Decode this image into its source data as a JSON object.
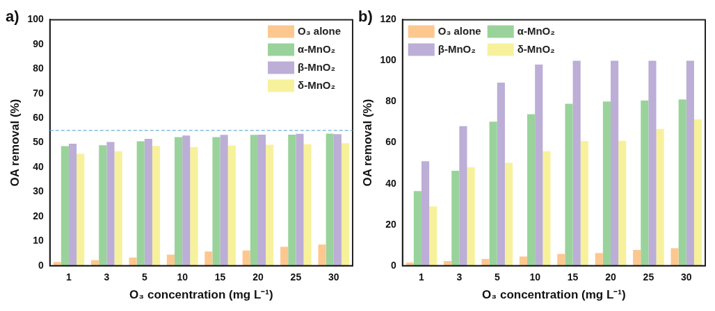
{
  "chart_data": [
    {
      "type": "bar",
      "title": "a)",
      "xlabel": "O₃ concentration (mg L⁻¹)",
      "ylabel": "OA removal (%)",
      "categories": [
        "1",
        "3",
        "5",
        "10",
        "15",
        "20",
        "25",
        "30"
      ],
      "series": [
        {
          "name": "O₃ alone",
          "color": "#fcc890",
          "values": [
            1.5,
            2.3,
            3.3,
            4.5,
            5.8,
            6.2,
            7.7,
            8.6
          ]
        },
        {
          "name": "α-MnO₂",
          "color": "#99d39b",
          "values": [
            48.6,
            49,
            50.6,
            52.3,
            52.3,
            53.2,
            53.3,
            53.7
          ]
        },
        {
          "name": "β-MnO₂",
          "color": "#bcaed6",
          "values": [
            49.6,
            50.3,
            51.6,
            52.9,
            53.2,
            53.3,
            53.6,
            53.5
          ]
        },
        {
          "name": "δ-MnO₂",
          "color": "#f7f19c",
          "values": [
            45.5,
            46.6,
            48.7,
            48.3,
            48.8,
            49.2,
            49.4,
            49.8
          ]
        }
      ],
      "ylim": [
        0,
        100
      ],
      "yticks": [
        0,
        10,
        20,
        30,
        40,
        50,
        60,
        70,
        80,
        90,
        100
      ],
      "ref_lines": [
        {
          "axis": "y",
          "value": 55,
          "color": "#6aaed6",
          "line_style": "dashed"
        }
      ],
      "grid": false,
      "legend": "top right"
    },
    {
      "type": "bar",
      "title": "b)",
      "xlabel": "O₃ concentration (mg L⁻¹)",
      "ylabel": "OA removal (%)",
      "categories": [
        "1",
        "3",
        "5",
        "10",
        "15",
        "20",
        "25",
        "30"
      ],
      "series": [
        {
          "name": "O₃ alone",
          "color": "#fcc890",
          "values": [
            1.5,
            2.3,
            3.3,
            4.5,
            5.8,
            6.2,
            7.7,
            8.6
          ]
        },
        {
          "name": "α-MnO₂",
          "color": "#99d39b",
          "values": [
            36.4,
            46.3,
            70.3,
            73.9,
            79,
            80.1,
            80.6,
            81.1
          ]
        },
        {
          "name": "β-MnO₂",
          "color": "#bcaed6",
          "values": [
            51,
            68.1,
            89.3,
            98.1,
            100,
            100,
            100,
            100
          ]
        },
        {
          "name": "δ-MnO₂",
          "color": "#f7f19c",
          "values": [
            29,
            48,
            50.2,
            55.9,
            60.8,
            61,
            66.7,
            71.4
          ]
        }
      ],
      "ylim": [
        0,
        120
      ],
      "yticks": [
        0,
        20,
        40,
        60,
        80,
        100,
        120
      ],
      "grid": false,
      "legend": "top left"
    }
  ]
}
